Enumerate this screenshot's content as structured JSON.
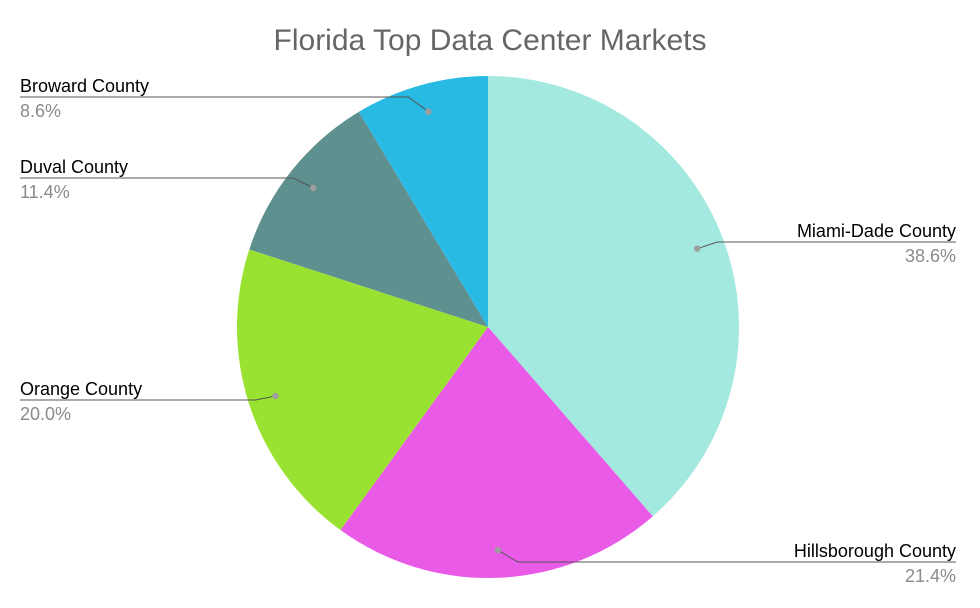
{
  "chart_data": {
    "type": "pie",
    "title": "Florida Top Data Center Markets",
    "start_angle_deg": 0,
    "direction": "clockwise",
    "legend": "none",
    "label_style": "callout labels with leader lines, name above percentage",
    "slices": [
      {
        "label": "Miami-Dade County",
        "value": 38.6,
        "percent_label": "38.6%",
        "color": "#a3e9df"
      },
      {
        "label": "Hillsborough County",
        "value": 21.4,
        "percent_label": "21.4%",
        "color": "#e95ae6"
      },
      {
        "label": "Orange County",
        "value": 20.0,
        "percent_label": "20.0%",
        "color": "#9ae231"
      },
      {
        "label": "Duval County",
        "value": 11.4,
        "percent_label": "11.4%",
        "color": "#5f9090"
      },
      {
        "label": "Broward County",
        "value": 8.6,
        "percent_label": "8.6%",
        "color": "#29bae4"
      }
    ],
    "colors": {
      "title": "#666666",
      "label": "#000000",
      "percent": "#8a8a8a",
      "leader": "#555555",
      "dot": "#9e9e9e"
    }
  }
}
